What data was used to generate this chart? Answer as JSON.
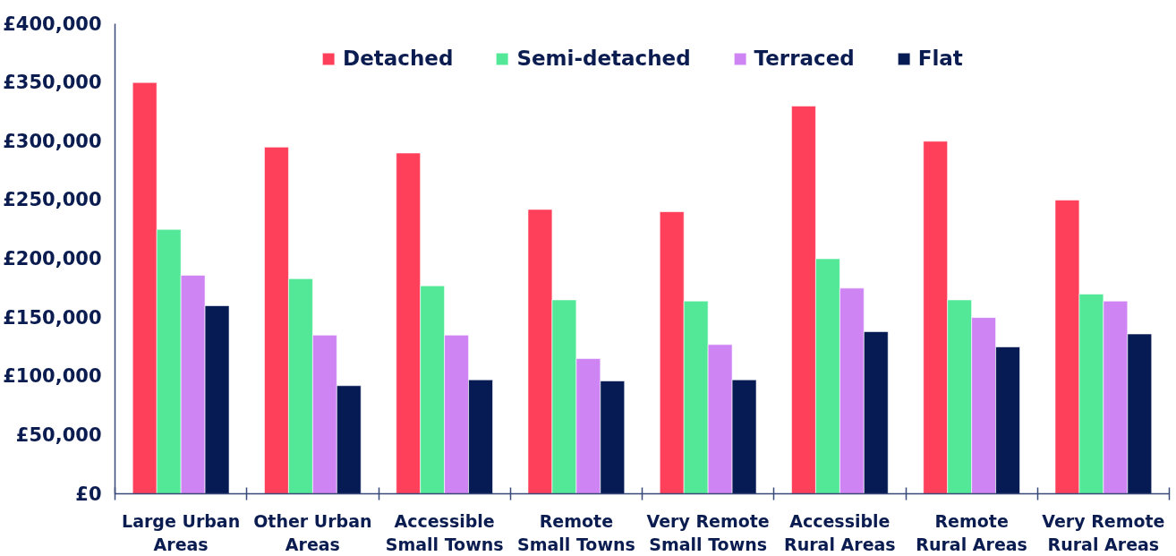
{
  "chart_data": {
    "type": "bar",
    "categories": [
      "Large Urban\nAreas",
      "Other Urban\nAreas",
      "Accessible\nSmall Towns",
      "Remote\nSmall Towns",
      "Very Remote\nSmall Towns",
      "Accessible\nRural Areas",
      "Remote\nRural Areas",
      "Very Remote\nRural Areas"
    ],
    "series": [
      {
        "name": "Detached",
        "color": "#ff405b",
        "values": [
          350000,
          295000,
          290000,
          242000,
          240000,
          330000,
          300000,
          250000
        ]
      },
      {
        "name": "Semi-detached",
        "color": "#52e898",
        "values": [
          225000,
          183000,
          177000,
          165000,
          164000,
          200000,
          165000,
          170000
        ]
      },
      {
        "name": "Terraced",
        "color": "#cf84f4",
        "values": [
          186000,
          135000,
          135000,
          115000,
          127000,
          175000,
          150000,
          164000
        ]
      },
      {
        "name": "Flat",
        "color": "#061a54",
        "values": [
          160000,
          92000,
          97000,
          96000,
          97000,
          138000,
          125000,
          136000
        ]
      }
    ],
    "ylim": [
      0,
      400000
    ],
    "yticks": [
      {
        "value": 0,
        "label": "£0"
      },
      {
        "value": 50000,
        "label": "£50,000"
      },
      {
        "value": 100000,
        "label": "£100,000"
      },
      {
        "value": 150000,
        "label": "£150,000"
      },
      {
        "value": 200000,
        "label": "£200,000"
      },
      {
        "value": 250000,
        "label": "£250,000"
      },
      {
        "value": 300000,
        "label": "£300,000"
      },
      {
        "value": 350000,
        "label": "£350,000"
      },
      {
        "value": 400000,
        "label": "£400,000"
      }
    ],
    "legend": "top",
    "grid": false
  }
}
